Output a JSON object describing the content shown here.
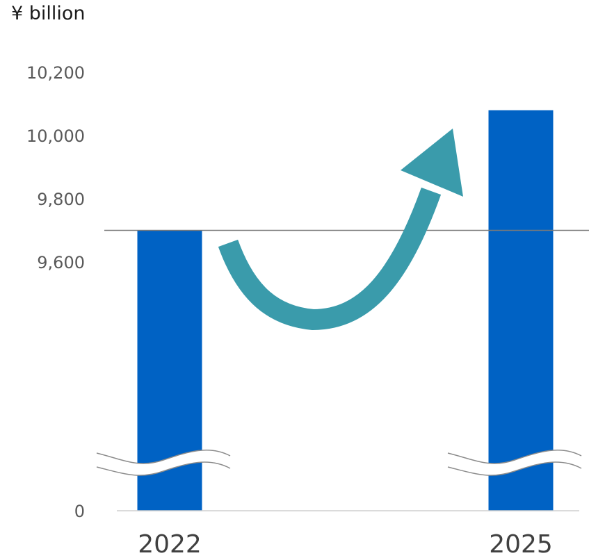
{
  "chart_data": {
    "type": "bar",
    "unit_label": "¥ billion",
    "categories": [
      "2022",
      "2025"
    ],
    "values": [
      9700,
      10080
    ],
    "y_ticks": [
      "0",
      "9,600",
      "9,800",
      "10,000",
      "10,200"
    ],
    "y_tick_values": [
      0,
      9600,
      9800,
      10000,
      10200
    ],
    "axis_break": true,
    "bar_color": "#0062C4",
    "arrow_color": "#3A9BAB",
    "reference_line_value": 9700,
    "grid": false
  }
}
